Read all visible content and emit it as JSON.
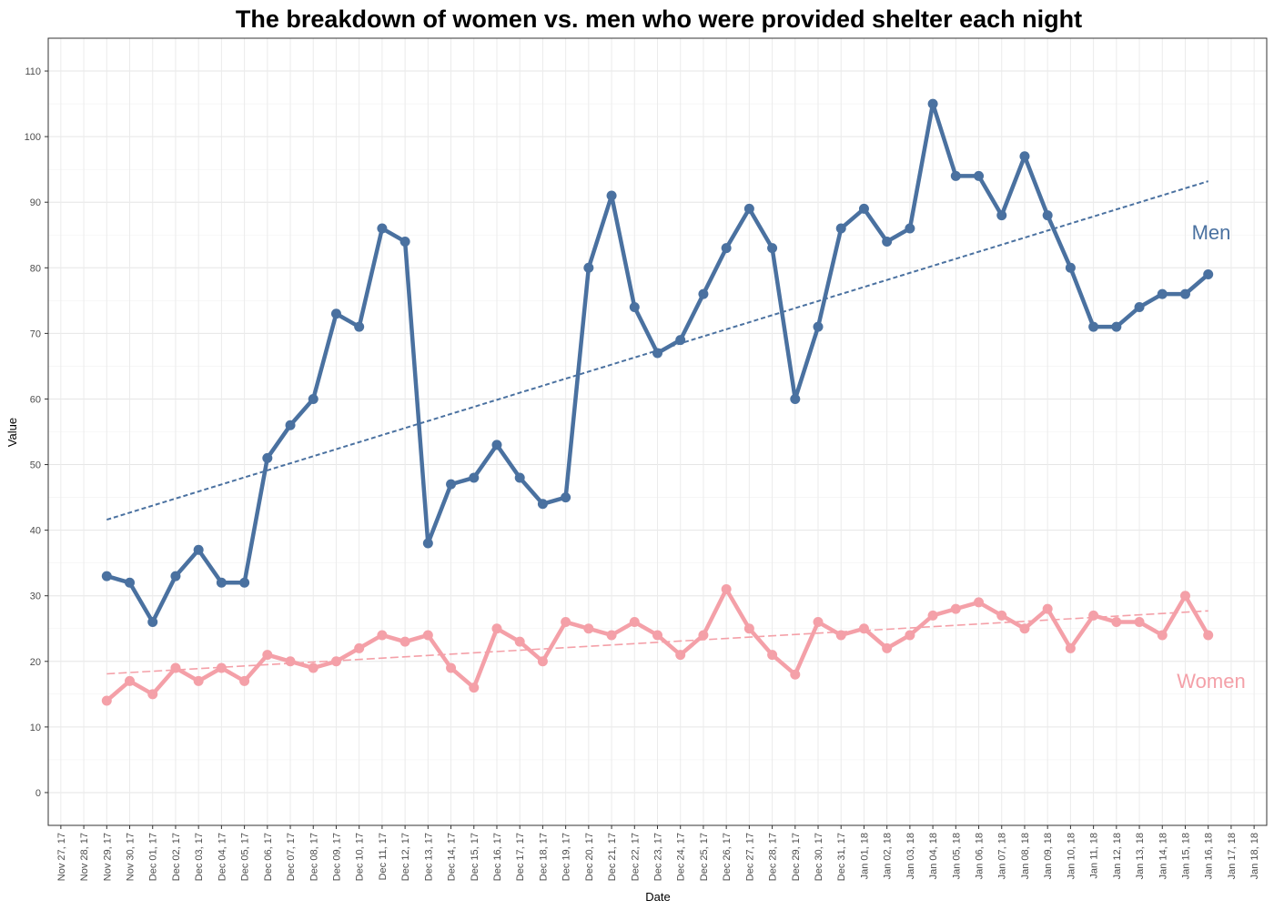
{
  "chart_data": {
    "type": "line",
    "title": "The breakdown of women vs. men who were provided shelter each night",
    "xlabel": "Date",
    "ylabel": "Value",
    "ylim": [
      -5,
      115
    ],
    "yticks": [
      0,
      10,
      20,
      30,
      40,
      50,
      60,
      70,
      80,
      90,
      100,
      110
    ],
    "x_tick_labels": [
      "Nov 27, 17",
      "Nov 28, 17",
      "Nov 29, 17",
      "Nov 30, 17",
      "Dec 01, 17",
      "Dec 02, 17",
      "Dec 03, 17",
      "Dec 04, 17",
      "Dec 05, 17",
      "Dec 06, 17",
      "Dec 07, 17",
      "Dec 08, 17",
      "Dec 09, 17",
      "Dec 10, 17",
      "Dec 11, 17",
      "Dec 12, 17",
      "Dec 13, 17",
      "Dec 14, 17",
      "Dec 15, 17",
      "Dec 16, 17",
      "Dec 17, 17",
      "Dec 18, 17",
      "Dec 19, 17",
      "Dec 20, 17",
      "Dec 21, 17",
      "Dec 22, 17",
      "Dec 23, 17",
      "Dec 24, 17",
      "Dec 25, 17",
      "Dec 26, 17",
      "Dec 27, 17",
      "Dec 28, 17",
      "Dec 29, 17",
      "Dec 30, 17",
      "Dec 31, 17",
      "Jan 01, 18",
      "Jan 02, 18",
      "Jan 03, 18",
      "Jan 04, 18",
      "Jan 05, 18",
      "Jan 06, 18",
      "Jan 07, 18",
      "Jan 08, 18",
      "Jan 09, 18",
      "Jan 10, 18",
      "Jan 11, 18",
      "Jan 12, 18",
      "Jan 13, 18",
      "Jan 14, 18",
      "Jan 15, 18",
      "Jan 16, 18",
      "Jan 17, 18",
      "Jan 18, 18"
    ],
    "x": [
      "Nov 29, 17",
      "Nov 30, 17",
      "Dec 01, 17",
      "Dec 02, 17",
      "Dec 03, 17",
      "Dec 04, 17",
      "Dec 05, 17",
      "Dec 06, 17",
      "Dec 07, 17",
      "Dec 08, 17",
      "Dec 09, 17",
      "Dec 10, 17",
      "Dec 11, 17",
      "Dec 12, 17",
      "Dec 13, 17",
      "Dec 14, 17",
      "Dec 15, 17",
      "Dec 16, 17",
      "Dec 17, 17",
      "Dec 18, 17",
      "Dec 19, 17",
      "Dec 20, 17",
      "Dec 21, 17",
      "Dec 22, 17",
      "Dec 23, 17",
      "Dec 24, 17",
      "Dec 25, 17",
      "Dec 26, 17",
      "Dec 27, 17",
      "Dec 28, 17",
      "Dec 29, 17",
      "Dec 30, 17",
      "Dec 31, 17",
      "Jan 01, 18",
      "Jan 02, 18",
      "Jan 03, 18",
      "Jan 04, 18",
      "Jan 05, 18",
      "Jan 06, 18",
      "Jan 07, 18",
      "Jan 08, 18",
      "Jan 09, 18",
      "Jan 10, 18",
      "Jan 11, 18",
      "Jan 12, 18",
      "Jan 13, 18",
      "Jan 14, 18",
      "Jan 15, 18",
      "Jan 16, 18"
    ],
    "series": [
      {
        "name": "Men",
        "color": "#4a71a0",
        "values": [
          33,
          32,
          26,
          33,
          37,
          32,
          32,
          51,
          56,
          60,
          73,
          71,
          86,
          84,
          38,
          47,
          48,
          53,
          48,
          44,
          45,
          80,
          91,
          74,
          67,
          69,
          76,
          83,
          89,
          83,
          60,
          71,
          86,
          89,
          84,
          86,
          105,
          94,
          94,
          88,
          97,
          88,
          80,
          71,
          71,
          74,
          76,
          76,
          79
        ],
        "trend": [
          41.6,
          93.2
        ]
      },
      {
        "name": "Women",
        "color": "#f4a0a8",
        "values": [
          14,
          17,
          15,
          19,
          17,
          19,
          17,
          21,
          20,
          19,
          20,
          22,
          24,
          23,
          24,
          19,
          16,
          25,
          23,
          20,
          26,
          25,
          24,
          26,
          24,
          21,
          24,
          31,
          25,
          21,
          18,
          26,
          24,
          25,
          22,
          24,
          27,
          28,
          29,
          27,
          25,
          28,
          22,
          27,
          26,
          26,
          24,
          30,
          24
        ],
        "trend": [
          18.1,
          27.7
        ]
      }
    ],
    "grid": true,
    "legend": "direct labels at right end of each line"
  }
}
